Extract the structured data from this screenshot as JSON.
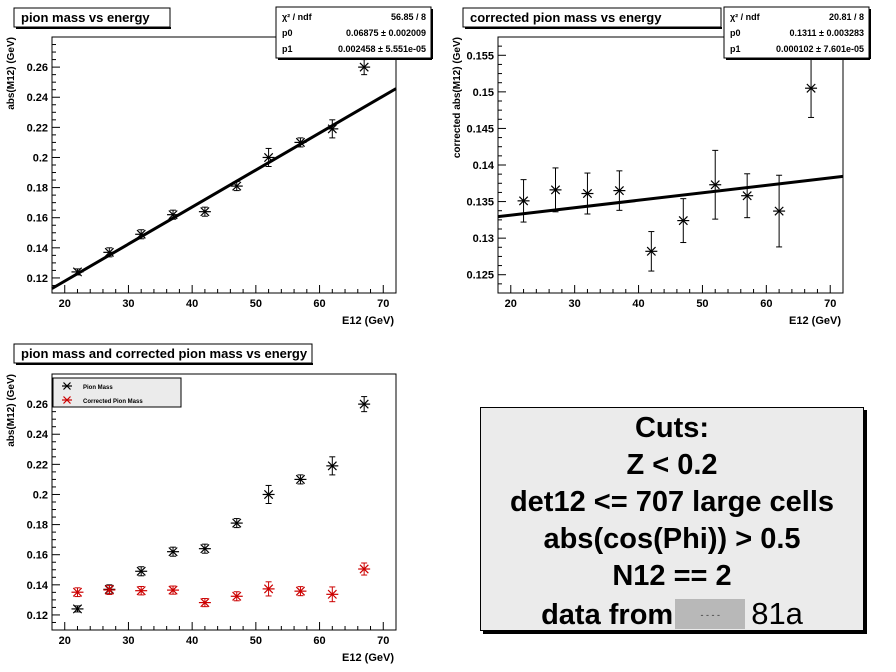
{
  "chart_data": [
    {
      "type": "scatter",
      "title": "pion mass vs energy",
      "xlabel": "E12 (GeV)",
      "ylabel": "abs(M12) (GeV)",
      "xlim": [
        18,
        72
      ],
      "ylim": [
        0.11,
        0.28
      ],
      "xticks": [
        20,
        30,
        40,
        50,
        60,
        70
      ],
      "yticks": [
        0.12,
        0.14,
        0.16,
        0.18,
        0.2,
        0.22,
        0.24,
        0.26
      ],
      "fit": {
        "p0": 0.06875,
        "p1": 0.002458
      },
      "stats": [
        {
          "label": "χ² / ndf",
          "value": "56.85 / 8"
        },
        {
          "label": "p0",
          "value": "0.06875 ± 0.002009"
        },
        {
          "label": "p1",
          "value": "0.002458 ± 5.551e-05"
        }
      ],
      "series": [
        {
          "color": "#000000",
          "x": [
            22,
            27,
            32,
            37,
            42,
            47,
            52,
            57,
            62,
            67
          ],
          "y": [
            0.124,
            0.137,
            0.149,
            0.162,
            0.164,
            0.181,
            0.2,
            0.21,
            0.219,
            0.26
          ],
          "err": [
            0.002,
            0.003,
            0.003,
            0.003,
            0.003,
            0.003,
            0.006,
            0.003,
            0.006,
            0.005
          ]
        }
      ]
    },
    {
      "type": "scatter",
      "title": "corrected pion mass vs energy",
      "xlabel": "E12 (GeV)",
      "ylabel": "corrected abs(M12) (GeV)",
      "xlim": [
        18,
        72
      ],
      "ylim": [
        0.1225,
        0.1575
      ],
      "xticks": [
        20,
        30,
        40,
        50,
        60,
        70
      ],
      "yticks": [
        0.125,
        0.13,
        0.135,
        0.14,
        0.145,
        0.15,
        0.155
      ],
      "fit": {
        "p0": 0.1311,
        "p1": 0.000102
      },
      "stats": [
        {
          "label": "χ² / ndf",
          "value": "20.81 / 8"
        },
        {
          "label": "p0",
          "value": "0.1311 ± 0.003283"
        },
        {
          "label": "p1",
          "value": "0.000102 ± 7.601e-05"
        }
      ],
      "series": [
        {
          "color": "#000000",
          "x": [
            22,
            27,
            32,
            37,
            42,
            47,
            52,
            57,
            62,
            67
          ],
          "y": [
            0.1351,
            0.1366,
            0.1361,
            0.1365,
            0.1282,
            0.1324,
            0.1373,
            0.1358,
            0.1337,
            0.1505
          ],
          "err": [
            0.0029,
            0.003,
            0.0028,
            0.0027,
            0.0027,
            0.003,
            0.0047,
            0.003,
            0.0049,
            0.004
          ]
        }
      ]
    },
    {
      "type": "scatter",
      "title": "pion mass and corrected pion mass vs energy",
      "xlabel": "E12 (GeV)",
      "ylabel": "abs(M12) (GeV)",
      "xlim": [
        18,
        72
      ],
      "ylim": [
        0.11,
        0.28
      ],
      "xticks": [
        20,
        30,
        40,
        50,
        60,
        70
      ],
      "yticks": [
        0.12,
        0.14,
        0.16,
        0.18,
        0.2,
        0.22,
        0.24,
        0.26
      ],
      "legend": "top-left",
      "series": [
        {
          "name": "Pion Mass",
          "color": "#000000",
          "x": [
            22,
            27,
            32,
            37,
            42,
            47,
            52,
            57,
            62,
            67
          ],
          "y": [
            0.124,
            0.137,
            0.149,
            0.162,
            0.164,
            0.181,
            0.2,
            0.21,
            0.219,
            0.26
          ],
          "err": [
            0.002,
            0.003,
            0.003,
            0.003,
            0.003,
            0.003,
            0.006,
            0.003,
            0.006,
            0.005
          ]
        },
        {
          "name": "Corrected Pion Mass",
          "color": "#cc0000",
          "x": [
            22,
            27,
            32,
            37,
            42,
            47,
            52,
            57,
            62,
            67
          ],
          "y": [
            0.1351,
            0.1366,
            0.1361,
            0.1365,
            0.1282,
            0.1324,
            0.1373,
            0.1358,
            0.1337,
            0.1505
          ],
          "err": [
            0.0029,
            0.003,
            0.0028,
            0.0027,
            0.0027,
            0.003,
            0.0047,
            0.003,
            0.0049,
            0.004
          ]
        }
      ]
    }
  ],
  "cuts": {
    "title": "Cuts:",
    "lines": [
      "Z < 0.2",
      "det12 <= 707 large cells",
      "abs(cos(Phi)) > 0.5",
      "N12 == 2"
    ],
    "data_from": "data from",
    "redacted_text": "- - - -",
    "tag": "81a"
  }
}
